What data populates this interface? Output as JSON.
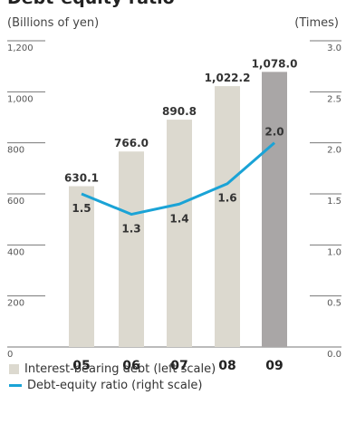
{
  "chart_data": {
    "type": "bar+line",
    "title": "Debt-equity ratio",
    "left_axis_unit": "(Billions of yen)",
    "right_axis_unit": "(Times)",
    "categories": [
      "05",
      "06",
      "07",
      "08",
      "09"
    ],
    "left_ticks": [
      "0",
      "200",
      "400",
      "600",
      "800",
      "1,000",
      "1,200"
    ],
    "right_ticks": [
      "0.0",
      "0.5",
      "1.0",
      "1.5",
      "2.0",
      "2.5",
      "3.0"
    ],
    "ylim_left": [
      0,
      1200
    ],
    "ylim_right": [
      0,
      3.0
    ],
    "series": [
      {
        "name": "Interest-bearing debt (left scale)",
        "kind": "bar",
        "axis": "left",
        "values": [
          630.1,
          766.0,
          890.8,
          1022.2,
          1078.0
        ],
        "labels": [
          "630.1",
          "766.0",
          "890.8",
          "1,022.2",
          "1,078.0"
        ],
        "color": "#dcd9cf",
        "highlight_color": "#a9a6a6",
        "highlight_index": 4
      },
      {
        "name": "Debt-equity ratio (right scale)",
        "kind": "line",
        "axis": "right",
        "values": [
          1.5,
          1.3,
          1.4,
          1.6,
          2.0
        ],
        "labels": [
          "1.5",
          "1.3",
          "1.4",
          "1.6",
          "2.0"
        ],
        "color": "#1aa3d6"
      }
    ],
    "grid": false
  }
}
